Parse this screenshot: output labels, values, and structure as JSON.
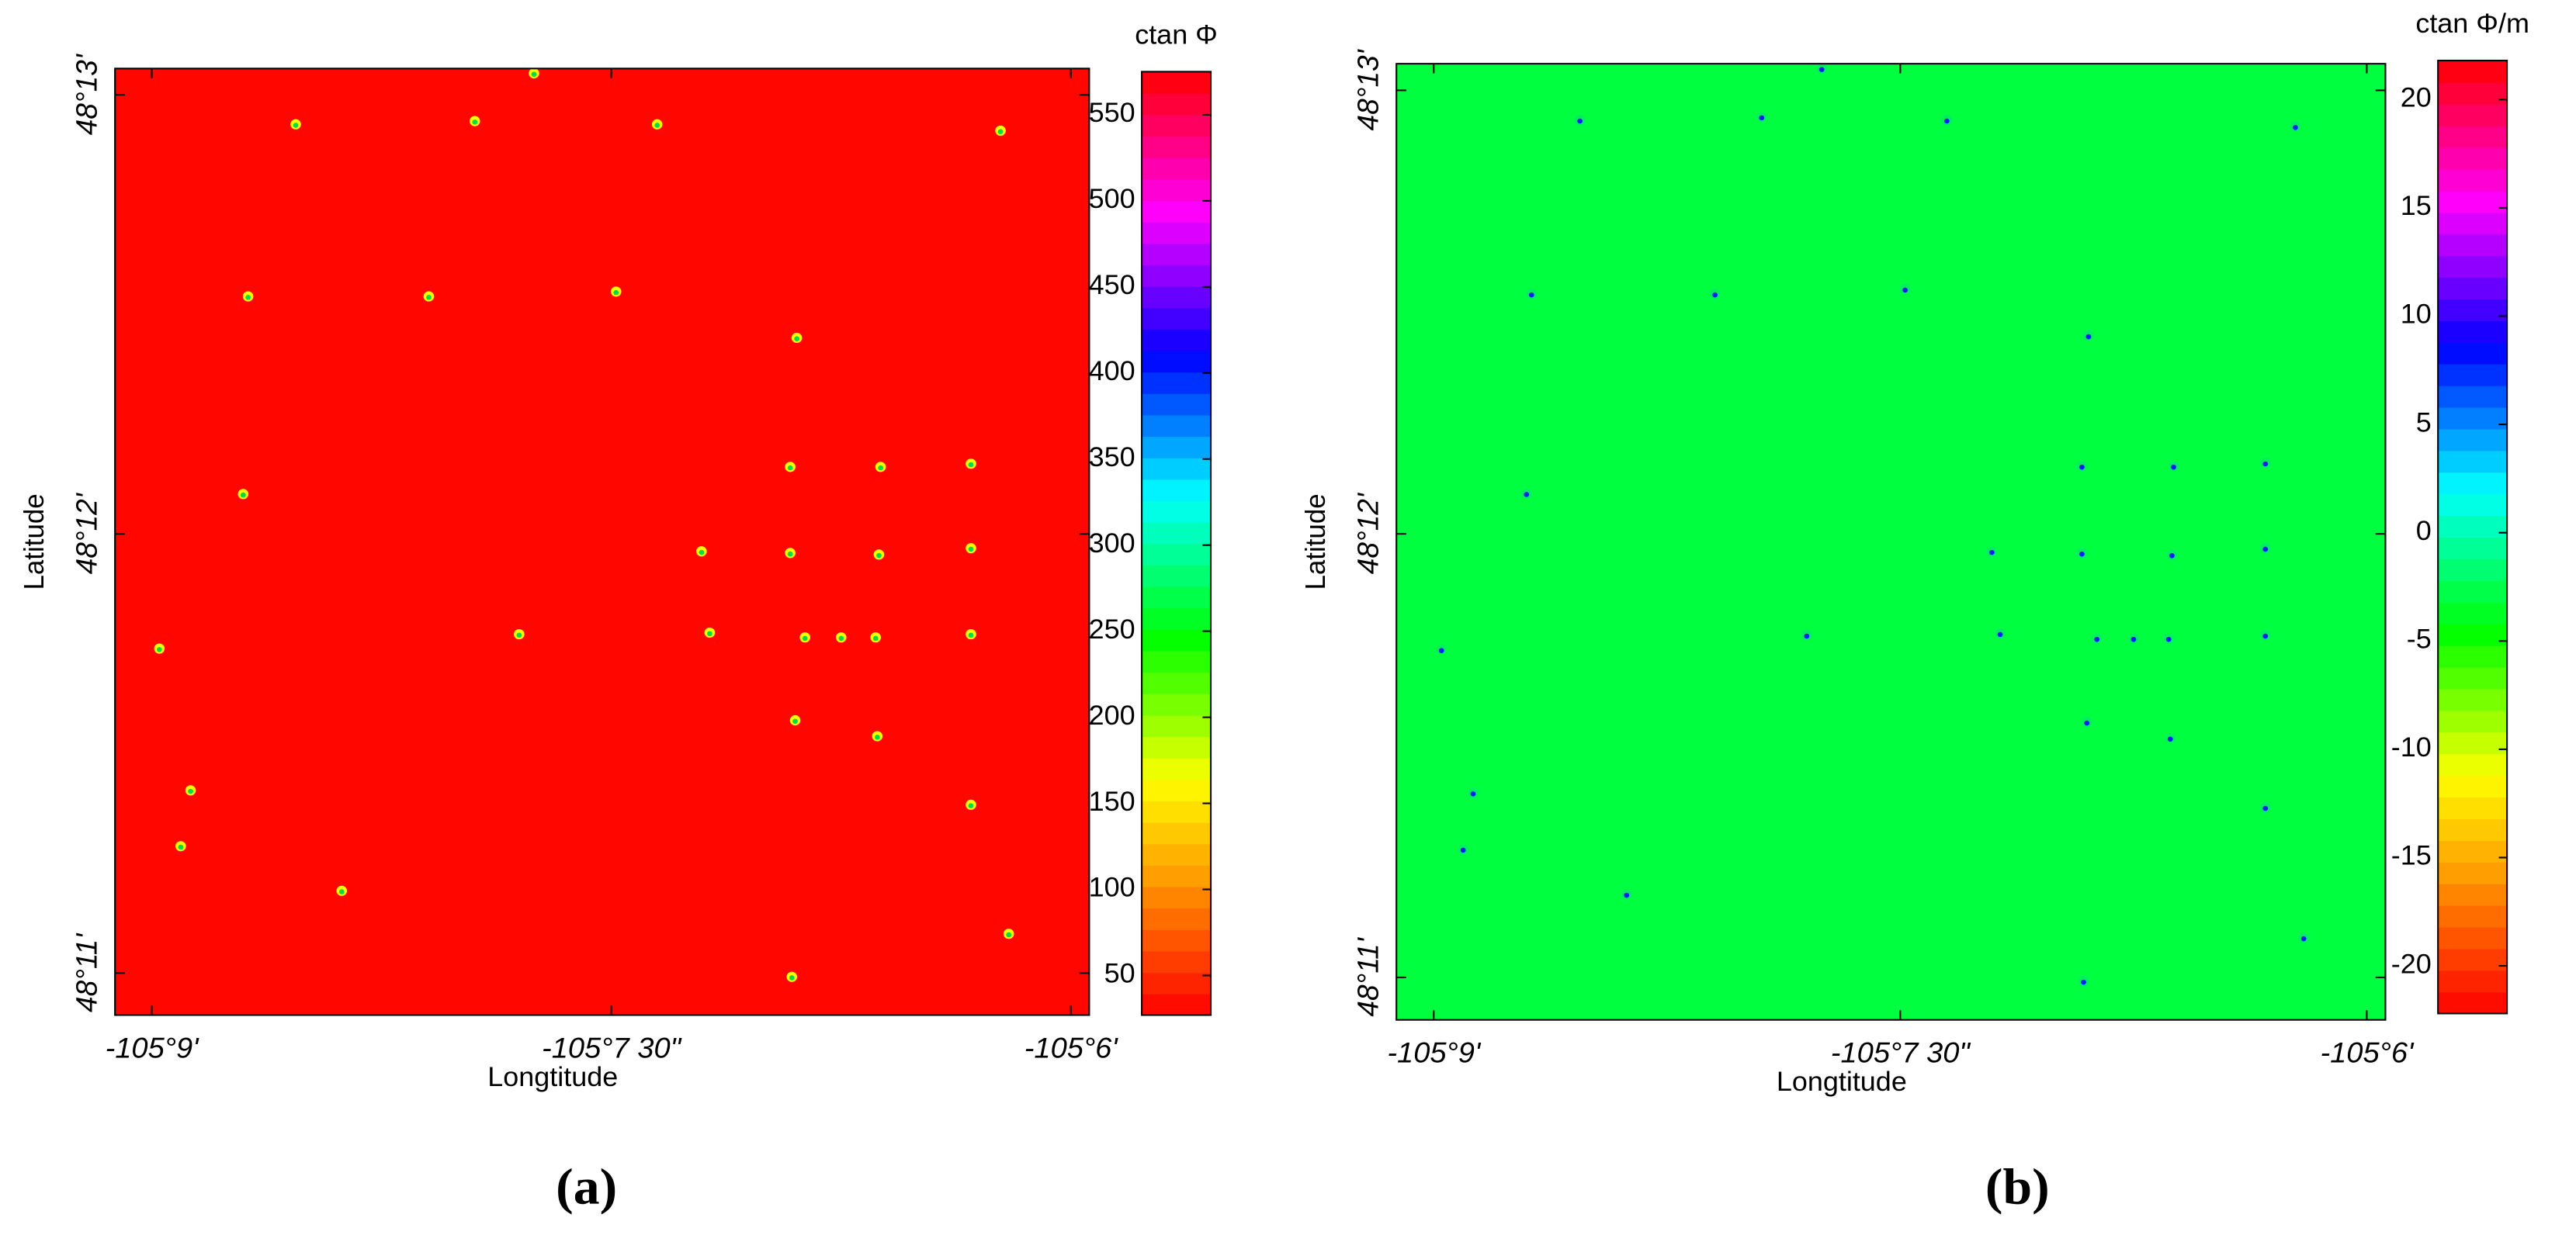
{
  "chart_data": [
    {
      "type": "heatmap",
      "caption": "(a)",
      "xlabel": "Longtitude",
      "ylabel": "Latitude",
      "colorbar_label": "ctan Φ",
      "xlim": [
        -105.152,
        -105.099
      ],
      "ylim": [
        48.1817,
        48.2177
      ],
      "xticks": [
        {
          "value": -105.15,
          "label": "-105°9'"
        },
        {
          "value": -105.125,
          "label": "-105°7 30\""
        },
        {
          "value": -105.1,
          "label": "-105°6'"
        }
      ],
      "yticks": [
        {
          "value": 48.1833,
          "label": "48°11'"
        },
        {
          "value": 48.2,
          "label": "48°12'"
        },
        {
          "value": 48.2167,
          "label": "48°13'"
        }
      ],
      "clim": [
        27,
        575
      ],
      "cticks": [
        50,
        100,
        150,
        200,
        250,
        300,
        350,
        400,
        450,
        500,
        550
      ],
      "background_value": 30,
      "colormap": [
        [
          0,
          "#ff0000"
        ],
        [
          0.15,
          "#ffa000"
        ],
        [
          0.25,
          "#ffff00"
        ],
        [
          0.4,
          "#00ff00"
        ],
        [
          0.55,
          "#00ffff"
        ],
        [
          0.7,
          "#0000ff"
        ],
        [
          0.85,
          "#ff00ff"
        ],
        [
          1,
          "#ff0000"
        ]
      ]
    },
    {
      "type": "heatmap",
      "caption": "(b)",
      "xlabel": "Longtitude",
      "ylabel": "Latitude",
      "colorbar_label": "ctan Φ/m",
      "xlim": [
        -105.152,
        -105.099
      ],
      "ylim": [
        48.1817,
        48.2177
      ],
      "xticks": [
        {
          "value": -105.15,
          "label": "-105°9'"
        },
        {
          "value": -105.125,
          "label": "-105°7 30\""
        },
        {
          "value": -105.1,
          "label": "-105°6'"
        }
      ],
      "yticks": [
        {
          "value": 48.1833,
          "label": "48°11'"
        },
        {
          "value": 48.2,
          "label": "48°12'"
        },
        {
          "value": 48.2167,
          "label": "48°13'"
        }
      ],
      "clim": [
        -22.2,
        21.8
      ],
      "cticks": [
        -20,
        -15,
        -10,
        -5,
        0,
        5,
        10,
        15,
        20
      ],
      "background_value": -3,
      "colormap": [
        [
          0,
          "#ff0000"
        ],
        [
          0.15,
          "#ffa000"
        ],
        [
          0.25,
          "#ffff00"
        ],
        [
          0.4,
          "#00ff00"
        ],
        [
          0.55,
          "#00ffff"
        ],
        [
          0.7,
          "#0000ff"
        ],
        [
          0.85,
          "#ff00ff"
        ],
        [
          1,
          "#ff0000"
        ]
      ]
    }
  ]
}
